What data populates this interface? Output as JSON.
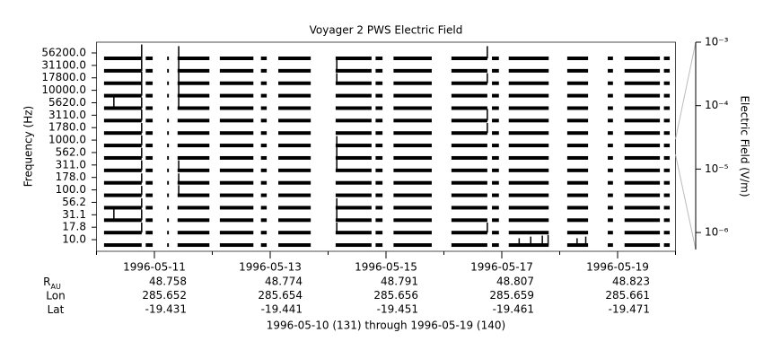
{
  "chart_data": {
    "type": "channel-strips",
    "title": "Voyager 2 PWS Electric Field",
    "y_label": "Frequency (Hz)",
    "y2_label": "Electric Field (V/m)",
    "footer": "1996-05-10 (131) through 1996-05-19 (140)",
    "color": "#000000",
    "xlim": [
      131,
      141
    ],
    "xticks": [
      {
        "value": 132,
        "label": "1996-05-11"
      },
      {
        "value": 134,
        "label": "1996-05-13"
      },
      {
        "value": 136,
        "label": "1996-05-15"
      },
      {
        "value": 138,
        "label": "1996-05-17"
      },
      {
        "value": 140,
        "label": "1996-05-19"
      }
    ],
    "xminorticks": [
      131,
      132,
      133,
      134,
      135,
      136,
      137,
      138,
      139,
      140,
      141
    ],
    "y2lim": [
      5.4e-07,
      0.001
    ],
    "y2_log": true,
    "y2ticks": [
      {
        "value": 0.001,
        "label": "10⁻³"
      },
      {
        "value": 0.0001,
        "label": "10⁻⁴"
      },
      {
        "value": 1e-05,
        "label": "10⁻⁵"
      },
      {
        "value": 1e-06,
        "label": "10⁻⁶"
      }
    ],
    "segments": [
      [
        131.13,
        131.78
      ],
      [
        131.85,
        131.97
      ],
      [
        132.22,
        132.25
      ],
      [
        132.4,
        132.95
      ],
      [
        133.13,
        133.71
      ],
      [
        133.84,
        133.94
      ],
      [
        134.14,
        134.7
      ],
      [
        135.13,
        135.75
      ],
      [
        135.82,
        135.94
      ],
      [
        136.13,
        136.79
      ],
      [
        137.13,
        137.75
      ],
      [
        137.83,
        137.95
      ],
      [
        138.12,
        138.81
      ],
      [
        139.13,
        139.49
      ],
      [
        139.83,
        139.92
      ],
      [
        140.12,
        140.73
      ],
      [
        140.8,
        140.9
      ]
    ],
    "series": [
      {
        "name": "56200.0",
        "x": [
          131.78,
          132.42,
          137.75
        ],
        "values": [
          0.0002,
          0.0001,
          0.0001
        ]
      },
      {
        "name": "31100.0",
        "x": [
          131.78,
          132.42,
          135.15
        ],
        "values": [
          0.0001,
          6e-05,
          6e-05
        ]
      },
      {
        "name": "17800.0",
        "x": [
          131.78,
          132.42,
          135.15,
          137.75
        ],
        "values": [
          8e-05,
          5e-05,
          4e-05,
          4e-05
        ]
      },
      {
        "name": "10000.0",
        "x": [
          131.78,
          132.42
        ],
        "values": [
          0.0001,
          0.0001
        ]
      },
      {
        "name": "5620.0",
        "x": [
          131.3,
          131.78,
          132.42
        ],
        "values": [
          0.0001,
          5e-05,
          5e-05
        ]
      },
      {
        "name": "3110.0",
        "x": [
          131.78,
          137.75
        ],
        "values": [
          6e-05,
          8e-05
        ]
      },
      {
        "name": "1780.0",
        "x": [
          131.78,
          137.75
        ],
        "values": [
          4e-05,
          4e-05
        ]
      },
      {
        "name": "1000.0",
        "x": [
          131.78,
          135.15
        ],
        "values": [
          4e-05,
          3e-05
        ]
      },
      {
        "name": "562.0",
        "x": [
          131.78,
          135.15
        ],
        "values": [
          4e-05,
          0.0001
        ]
      },
      {
        "name": "311.0",
        "x": [
          131.78,
          132.42,
          135.15
        ],
        "values": [
          4e-05,
          4e-05,
          0.0001
        ]
      },
      {
        "name": "178.0",
        "x": [
          131.78,
          132.42
        ],
        "values": [
          3e-05,
          3e-05
        ]
      },
      {
        "name": "100.0",
        "x": [
          131.78,
          132.42
        ],
        "values": [
          3e-05,
          4e-05
        ]
      },
      {
        "name": "56.2",
        "x": [
          131.78,
          135.15
        ],
        "values": [
          3e-05,
          3e-05
        ]
      },
      {
        "name": "31.1",
        "x": [
          131.3,
          131.78,
          135.15
        ],
        "values": [
          6e-05,
          5e-05,
          0.0001
        ]
      },
      {
        "name": "17.8",
        "x": [
          131.78,
          135.15,
          137.75
        ],
        "values": [
          4e-05,
          4e-05,
          4e-05
        ]
      },
      {
        "name": "10.0",
        "x": [
          138.3,
          138.5,
          138.7,
          138.8,
          139.3,
          139.45
        ],
        "values": [
          1e-05,
          2e-05,
          3e-05,
          4e-05,
          1e-05,
          2e-05
        ]
      }
    ],
    "ephemeris": [
      {
        "name": "R",
        "subscript": "AU",
        "values": [
          48.758,
          48.774,
          48.791,
          48.807,
          48.823
        ]
      },
      {
        "name": "Lon",
        "values": [
          285.652,
          285.654,
          285.656,
          285.659,
          285.661
        ]
      },
      {
        "name": "Lat",
        "values": [
          -19.431,
          -19.441,
          -19.451,
          -19.461,
          -19.471
        ]
      }
    ]
  }
}
